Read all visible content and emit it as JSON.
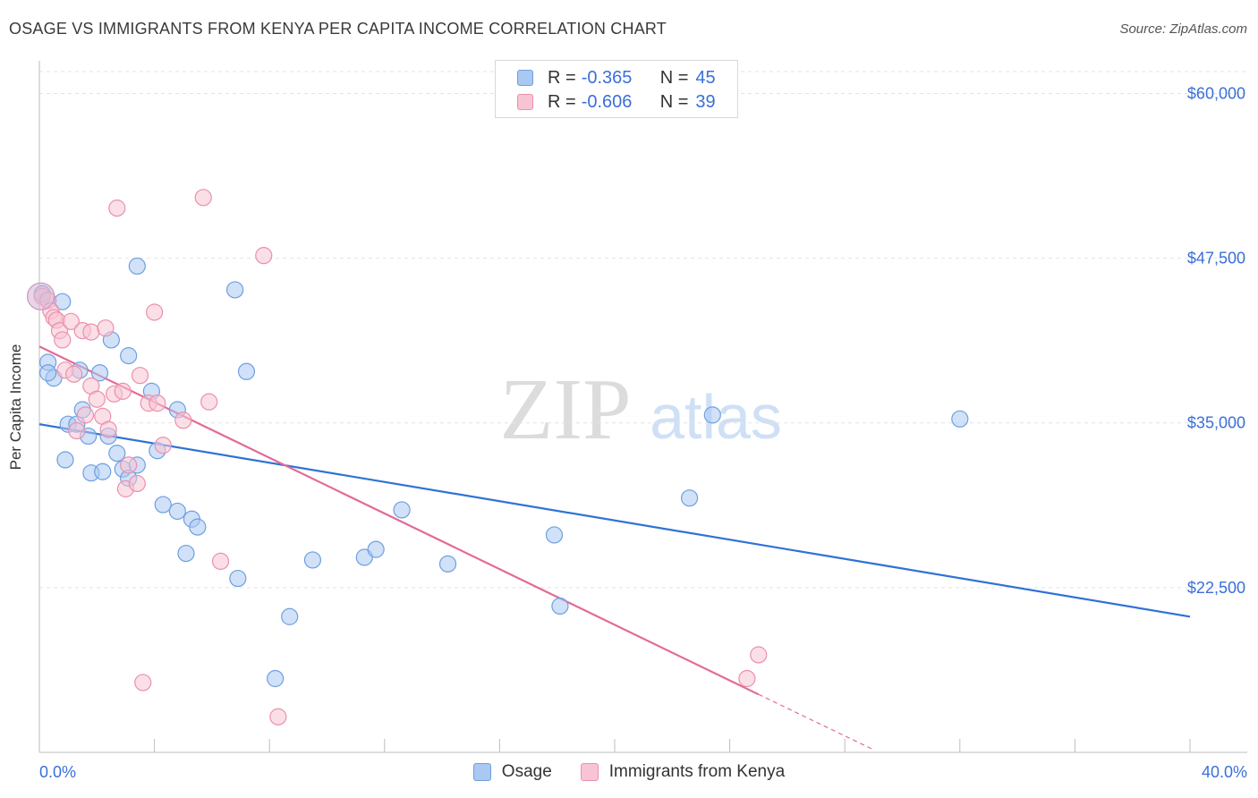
{
  "header": {
    "title": "OSAGE VS IMMIGRANTS FROM KENYA PER CAPITA INCOME CORRELATION CHART",
    "source": "Source: ZipAtlas.com"
  },
  "watermark": {
    "zip": "ZIP",
    "atlas": "atlas"
  },
  "legend": {
    "rows": [
      {
        "r_label": "R =",
        "r_value": "-0.365",
        "n_label": "N =",
        "n_value": "45",
        "color": "#a9c9f2",
        "border": "#6e9fe0"
      },
      {
        "r_label": "R =",
        "r_value": "-0.606",
        "n_label": "N =",
        "n_value": "39",
        "color": "#f8c4d4",
        "border": "#ec8fac"
      }
    ]
  },
  "bottom_legend": {
    "items": [
      "Osage",
      "Immigrants from Kenya"
    ]
  },
  "chart_data": {
    "type": "scatter",
    "title": "OSAGE VS IMMIGRANTS FROM KENYA PER CAPITA INCOME CORRELATION CHART",
    "xlabel": "",
    "ylabel": "Per Capita Income",
    "xlim": [
      0,
      40
    ],
    "ylim": [
      10000,
      62000
    ],
    "x_tick_labels": [
      "0.0%",
      "40.0%"
    ],
    "y_ticks": [
      22500,
      35000,
      47500,
      60000
    ],
    "y_tick_labels": [
      "$22,500",
      "$35,000",
      "$47,500",
      "$60,000"
    ],
    "series": [
      {
        "name": "Osage",
        "color": "#a9c9f2",
        "edge": "#6e9fe0",
        "trend_color": "#2f72d4",
        "trend": {
          "x": [
            0,
            40
          ],
          "y": [
            34900,
            20300
          ]
        },
        "points": [
          [
            0.1,
            44800
          ],
          [
            0.3,
            39600
          ],
          [
            0.5,
            38400
          ],
          [
            0.8,
            44200
          ],
          [
            0.9,
            32200
          ],
          [
            1.0,
            34900
          ],
          [
            1.3,
            34900
          ],
          [
            1.4,
            39000
          ],
          [
            1.5,
            36000
          ],
          [
            1.7,
            34000
          ],
          [
            1.8,
            31200
          ],
          [
            2.1,
            38800
          ],
          [
            2.2,
            31300
          ],
          [
            2.4,
            34000
          ],
          [
            2.5,
            41300
          ],
          [
            2.7,
            32700
          ],
          [
            2.9,
            31500
          ],
          [
            3.1,
            30800
          ],
          [
            3.1,
            40100
          ],
          [
            3.4,
            31800
          ],
          [
            3.4,
            46900
          ],
          [
            3.9,
            37400
          ],
          [
            4.1,
            32900
          ],
          [
            4.3,
            28800
          ],
          [
            4.8,
            36000
          ],
          [
            4.8,
            28300
          ],
          [
            5.1,
            25100
          ],
          [
            5.3,
            27700
          ],
          [
            5.5,
            27100
          ],
          [
            6.8,
            45100
          ],
          [
            6.9,
            23200
          ],
          [
            7.2,
            38900
          ],
          [
            8.2,
            15600
          ],
          [
            8.7,
            20300
          ],
          [
            9.5,
            24600
          ],
          [
            11.3,
            24800
          ],
          [
            11.7,
            25400
          ],
          [
            12.6,
            28400
          ],
          [
            14.2,
            24300
          ],
          [
            17.9,
            26500
          ],
          [
            18.1,
            21100
          ],
          [
            22.6,
            29300
          ],
          [
            23.4,
            35600
          ],
          [
            32.0,
            35300
          ],
          [
            0.3,
            38800
          ]
        ]
      },
      {
        "name": "Immigrants from Kenya",
        "color": "#f8c4d4",
        "edge": "#ec8fac",
        "trend_color": "#e36b97",
        "trend": {
          "x": [
            0,
            25
          ],
          "y": [
            40800,
            14400
          ]
        },
        "trend_dashed": {
          "x": [
            25,
            29
          ],
          "y": [
            14400,
            10200
          ]
        },
        "points": [
          [
            0.1,
            44600
          ],
          [
            0.3,
            44300
          ],
          [
            0.4,
            43500
          ],
          [
            0.5,
            43000
          ],
          [
            0.6,
            42800
          ],
          [
            0.7,
            42000
          ],
          [
            0.8,
            41300
          ],
          [
            0.9,
            39000
          ],
          [
            1.1,
            42700
          ],
          [
            1.2,
            38700
          ],
          [
            1.3,
            34400
          ],
          [
            1.5,
            42000
          ],
          [
            1.6,
            35600
          ],
          [
            1.8,
            41900
          ],
          [
            1.8,
            37800
          ],
          [
            2.0,
            36800
          ],
          [
            2.2,
            35500
          ],
          [
            2.3,
            42200
          ],
          [
            2.4,
            34500
          ],
          [
            2.6,
            37200
          ],
          [
            2.7,
            51300
          ],
          [
            2.9,
            37400
          ],
          [
            3.0,
            30000
          ],
          [
            3.1,
            31800
          ],
          [
            3.4,
            30400
          ],
          [
            3.5,
            38600
          ],
          [
            3.6,
            15300
          ],
          [
            3.8,
            36500
          ],
          [
            4.0,
            43400
          ],
          [
            4.1,
            36500
          ],
          [
            4.3,
            33300
          ],
          [
            5.0,
            35200
          ],
          [
            5.7,
            52100
          ],
          [
            5.9,
            36600
          ],
          [
            6.3,
            24500
          ],
          [
            7.8,
            47700
          ],
          [
            8.3,
            12700
          ],
          [
            24.6,
            15600
          ],
          [
            25.0,
            17400
          ]
        ]
      }
    ]
  }
}
